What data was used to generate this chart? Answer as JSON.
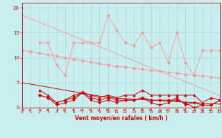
{
  "x": [
    0,
    1,
    2,
    3,
    4,
    5,
    6,
    7,
    8,
    9,
    10,
    11,
    12,
    13,
    14,
    15,
    16,
    17,
    18,
    19,
    20,
    21,
    22,
    23
  ],
  "line_trend1_y": [
    18.5,
    17.8,
    17.1,
    16.4,
    15.7,
    15.0,
    14.3,
    13.6,
    12.9,
    12.2,
    11.5,
    10.8,
    10.1,
    9.4,
    8.7,
    8.0,
    7.3,
    6.6,
    5.9,
    5.2,
    4.5,
    3.8,
    3.1,
    2.4
  ],
  "line_zigzag1_y": [
    null,
    null,
    13.0,
    13.0,
    8.5,
    6.5,
    13.0,
    13.0,
    13.0,
    13.0,
    18.5,
    15.5,
    13.0,
    12.5,
    15.0,
    12.0,
    13.0,
    9.0,
    15.0,
    9.0,
    6.5,
    11.5,
    11.5,
    11.5
  ],
  "line_trend2_y": [
    11.5,
    11.2,
    10.9,
    10.6,
    10.3,
    10.0,
    9.7,
    9.4,
    9.1,
    8.8,
    8.5,
    8.3,
    8.1,
    7.9,
    7.7,
    7.5,
    7.3,
    7.1,
    6.9,
    6.7,
    6.5,
    6.3,
    6.1,
    5.9
  ],
  "line_trend3_y": [
    5.0,
    4.7,
    4.4,
    4.1,
    3.8,
    3.5,
    3.2,
    2.9,
    2.6,
    2.3,
    2.1,
    1.9,
    1.8,
    1.7,
    1.6,
    1.5,
    1.4,
    1.3,
    1.2,
    1.1,
    1.0,
    0.9,
    0.8,
    0.7
  ],
  "line_zigzag2_y": [
    null,
    null,
    3.5,
    2.5,
    1.0,
    1.5,
    2.5,
    3.0,
    2.5,
    2.0,
    2.5,
    2.0,
    2.5,
    2.5,
    3.5,
    2.5,
    2.5,
    2.5,
    2.5,
    2.5,
    2.5,
    1.0,
    2.0,
    1.5
  ],
  "line_zigzag3_y": [
    null,
    null,
    2.5,
    2.0,
    1.0,
    1.5,
    2.0,
    3.0,
    2.0,
    1.5,
    2.0,
    1.5,
    1.5,
    1.5,
    2.0,
    1.5,
    1.5,
    1.5,
    1.5,
    1.0,
    0.0,
    0.5,
    0.5,
    1.5
  ],
  "line_zigzag4_y": [
    null,
    null,
    2.5,
    2.0,
    0.5,
    1.0,
    1.5,
    3.0,
    1.5,
    1.0,
    1.5,
    1.0,
    1.5,
    1.5,
    2.0,
    1.0,
    0.5,
    1.0,
    2.0,
    0.5,
    1.0,
    0.5,
    0.5,
    1.5
  ],
  "bg_color": "#c8eef0",
  "grid_color": "#a8d8da",
  "light_pink": "#ff9999",
  "dark_red": "#cc0000",
  "xlabel": "Vent moyen/en rafales ( km/h )",
  "xlim": [
    0,
    23
  ],
  "ylim": [
    0,
    21
  ],
  "yticks": [
    0,
    5,
    10,
    15,
    20
  ]
}
